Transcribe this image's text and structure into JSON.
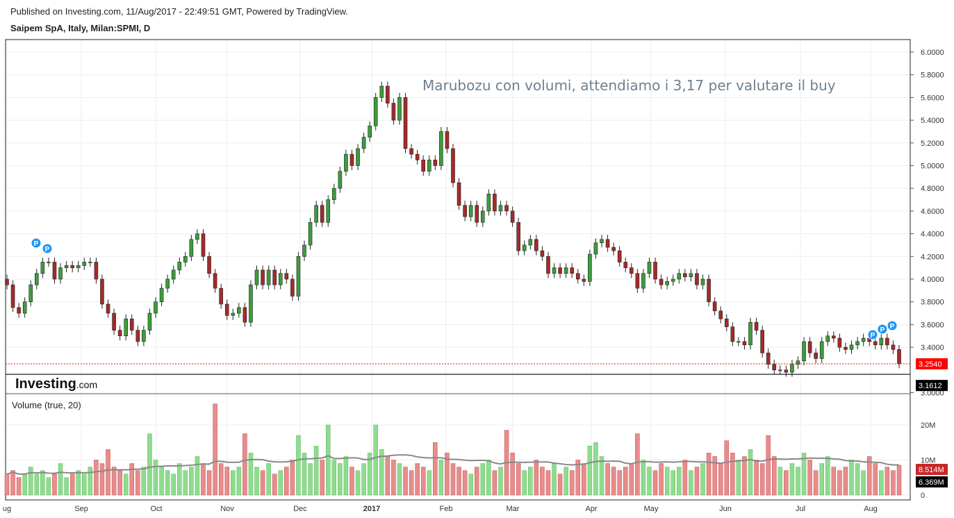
{
  "header": {
    "published": "Published on Investing.com, 11/Aug/2017 - 22:49:51 GMT, Powered by TradingView.",
    "title": "Saipem SpA, Italy, Milan:SPMI, D"
  },
  "logo": {
    "brand": "Investing",
    "suffix": ".com"
  },
  "annotation": "Marubozu con volumi, attendiamo i 3,17 per valutare il buy",
  "volume_label": "Volume (true, 20)",
  "colors": {
    "up": "#3c9d3c",
    "down": "#a52a2a",
    "vol_up": "#8fdc8f",
    "vol_down": "#e88c8c",
    "last_price": "#ff0000",
    "marker": "#2196f3"
  },
  "chart_data": [
    {
      "type": "candlestick",
      "title": "Saipem SpA, Italy, Milan:SPMI, D",
      "ylim": [
        3.0,
        6.0
      ],
      "yticks": [
        "6.0000",
        "5.8000",
        "5.6000",
        "5.4000",
        "5.2000",
        "5.0000",
        "4.8000",
        "4.6000",
        "4.4000",
        "4.2000",
        "4.0000",
        "3.8000",
        "3.6000",
        "3.4000",
        "3.0000"
      ],
      "xticks": [
        "ug",
        "Sep",
        "Oct",
        "Nov",
        "Dec",
        "2017",
        "Feb",
        "Mar",
        "Apr",
        "May",
        "Jun",
        "Jul",
        "Aug"
      ],
      "grid": true,
      "last_price": 3.254,
      "last_price_label": "3.2540",
      "level": 3.1612,
      "level_label": "3.1612",
      "close": [
        3.95,
        3.75,
        3.7,
        3.8,
        3.95,
        4.05,
        4.15,
        4.15,
        4.0,
        4.1,
        4.12,
        4.1,
        4.12,
        4.15,
        4.15,
        4.0,
        3.78,
        3.7,
        3.55,
        3.5,
        3.65,
        3.55,
        3.45,
        3.55,
        3.7,
        3.8,
        3.92,
        4.0,
        4.08,
        4.15,
        4.2,
        4.35,
        4.4,
        4.2,
        4.05,
        3.92,
        3.78,
        3.68,
        3.7,
        3.75,
        3.62,
        3.95,
        4.08,
        3.95,
        4.08,
        3.95,
        4.05,
        4.0,
        3.85,
        4.2,
        4.3,
        4.5,
        4.65,
        4.5,
        4.7,
        4.8,
        4.95,
        5.1,
        5.0,
        5.15,
        5.25,
        5.35,
        5.6,
        5.7,
        5.55,
        5.4,
        5.6,
        5.15,
        5.1,
        5.05,
        4.95,
        5.05,
        5.0,
        5.3,
        5.15,
        4.85,
        4.65,
        4.55,
        4.65,
        4.5,
        4.6,
        4.75,
        4.6,
        4.65,
        4.6,
        4.5,
        4.25,
        4.3,
        4.35,
        4.25,
        4.2,
        4.05,
        4.1,
        4.05,
        4.1,
        4.05,
        4.0,
        3.98,
        4.22,
        4.32,
        4.35,
        4.28,
        4.25,
        4.15,
        4.1,
        4.05,
        3.92,
        4.05,
        4.15,
        4.0,
        3.95,
        3.98,
        4.0,
        4.05,
        4.02,
        4.05,
        3.95,
        4.0,
        3.8,
        3.72,
        3.65,
        3.58,
        3.45,
        3.45,
        3.42,
        3.62,
        3.55,
        3.35,
        3.25,
        3.2,
        3.2,
        3.18,
        3.25,
        3.28,
        3.45,
        3.35,
        3.3,
        3.45,
        3.5,
        3.48,
        3.4,
        3.38,
        3.42,
        3.45,
        3.48,
        3.45,
        3.42,
        3.48,
        3.42,
        3.38,
        3.254
      ],
      "markers": [
        {
          "label": "P",
          "near": "Aug 2016"
        },
        {
          "label": "P",
          "near": "Aug 2017"
        }
      ]
    },
    {
      "type": "bar",
      "title": "Volume (true, 20)",
      "ylim": [
        0,
        28
      ],
      "unit": "M",
      "yticks": [
        "20M",
        "10M",
        "0"
      ],
      "ma_period": 20,
      "last_volume_label": "8.514M",
      "ma_label": "6.369M",
      "values": [
        6,
        7,
        5,
        6,
        8,
        6,
        7,
        5,
        6,
        9,
        5,
        6,
        7,
        6,
        8,
        10,
        9,
        13,
        8,
        7,
        6,
        9,
        7,
        8,
        17.5,
        10,
        8,
        7,
        6,
        9,
        7,
        8,
        11,
        9,
        7,
        26,
        9,
        8,
        7,
        8,
        17.5,
        12,
        8,
        7,
        9,
        6,
        7,
        8,
        10,
        17,
        12,
        9,
        14,
        10,
        20,
        10,
        9,
        11,
        8,
        7,
        9,
        12,
        20,
        13,
        11,
        10,
        9,
        8,
        7,
        9,
        8,
        7,
        15,
        10,
        12,
        9,
        8,
        7,
        6,
        8,
        9,
        10,
        7,
        8,
        18.5,
        12,
        9,
        7,
        8,
        10,
        8,
        7,
        9,
        6,
        8,
        7,
        10,
        9,
        14,
        15,
        11,
        9,
        8,
        7,
        8,
        9,
        17.5,
        10,
        8,
        7,
        9,
        8,
        7,
        8,
        10,
        7,
        8,
        9,
        12,
        11,
        9,
        15.5,
        12,
        10,
        11,
        13,
        10,
        9,
        17,
        11,
        8,
        7,
        9,
        8,
        12,
        10,
        7,
        9,
        11,
        8,
        7,
        8,
        10,
        9,
        7,
        11,
        9,
        7,
        8,
        7,
        8.514
      ]
    }
  ]
}
